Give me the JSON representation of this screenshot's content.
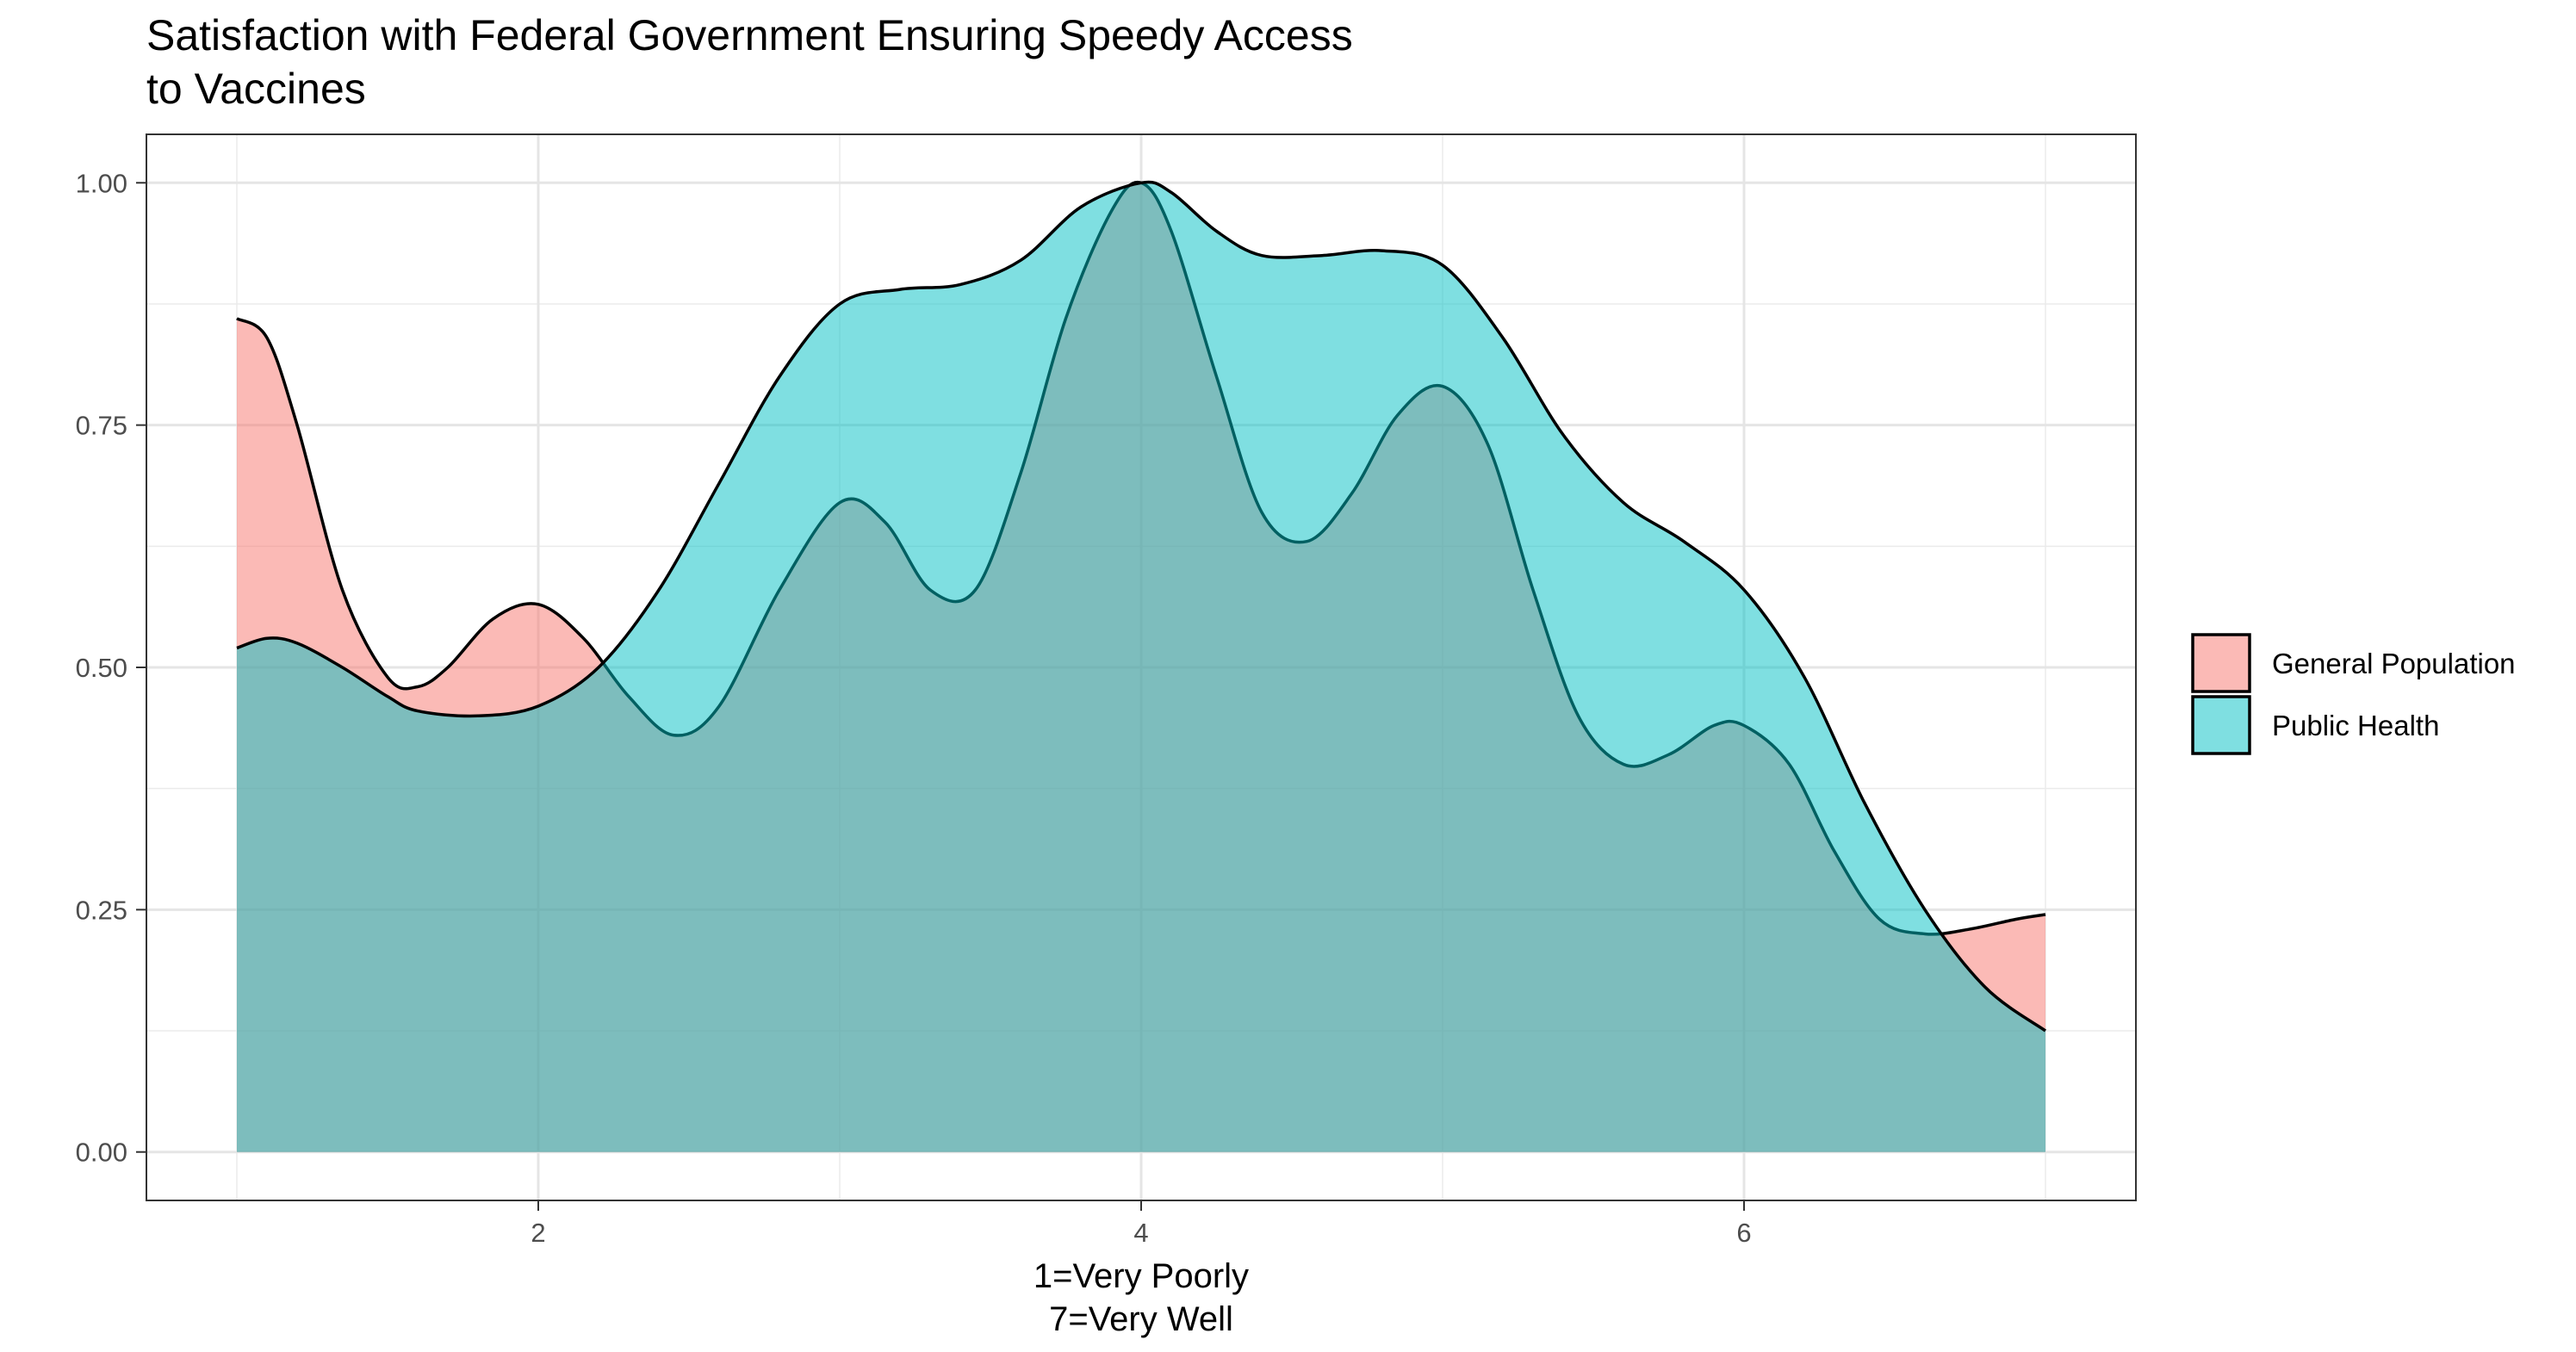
{
  "chart_data": {
    "type": "area",
    "title": [
      "Satisfaction with Federal Government Ensuring Speedy Access",
      "to Vaccines"
    ],
    "xlabel": [
      "1=Very Poorly",
      "7=Very Well"
    ],
    "ylabel": "",
    "xlim": [
      0.7,
      7.3
    ],
    "ylim": [
      -0.05,
      1.05
    ],
    "x_ticks": [
      2,
      4,
      6
    ],
    "x_tick_labels": [
      "2",
      "4",
      "6"
    ],
    "y_ticks": [
      0,
      0.25,
      0.5,
      0.75,
      1.0
    ],
    "y_tick_labels": [
      "0.00",
      "0.25",
      "0.50",
      "0.75",
      "1.00"
    ],
    "grid": true,
    "legend_position": "right",
    "series": [
      {
        "name": "General Population",
        "color": "#F8766D",
        "x": [
          1.0,
          1.1,
          1.2,
          1.35,
          1.5,
          1.6,
          1.7,
          1.85,
          2.0,
          2.15,
          2.3,
          2.45,
          2.6,
          2.8,
          3.0,
          3.15,
          3.3,
          3.45,
          3.6,
          3.75,
          3.9,
          4.0,
          4.1,
          4.25,
          4.4,
          4.55,
          4.7,
          4.85,
          5.0,
          5.15,
          5.3,
          5.45,
          5.6,
          5.75,
          5.9,
          6.0,
          6.15,
          6.3,
          6.45,
          6.6,
          6.75,
          6.9,
          7.0
        ],
        "values": [
          0.86,
          0.84,
          0.75,
          0.58,
          0.49,
          0.48,
          0.5,
          0.55,
          0.565,
          0.53,
          0.47,
          0.43,
          0.46,
          0.58,
          0.67,
          0.65,
          0.58,
          0.58,
          0.7,
          0.86,
          0.97,
          1.0,
          0.95,
          0.8,
          0.66,
          0.63,
          0.68,
          0.76,
          0.79,
          0.73,
          0.58,
          0.45,
          0.4,
          0.41,
          0.44,
          0.44,
          0.4,
          0.31,
          0.24,
          0.225,
          0.23,
          0.24,
          0.245
        ]
      },
      {
        "name": "Public Health",
        "color": "#00BFC4",
        "x": [
          1.0,
          1.1,
          1.2,
          1.35,
          1.5,
          1.6,
          1.8,
          2.0,
          2.2,
          2.4,
          2.6,
          2.8,
          3.0,
          3.2,
          3.4,
          3.6,
          3.8,
          4.0,
          4.1,
          4.25,
          4.4,
          4.6,
          4.8,
          5.0,
          5.2,
          5.4,
          5.6,
          5.8,
          6.0,
          6.2,
          6.4,
          6.6,
          6.8,
          7.0
        ],
        "values": [
          0.52,
          0.53,
          0.525,
          0.5,
          0.47,
          0.455,
          0.45,
          0.46,
          0.5,
          0.58,
          0.69,
          0.8,
          0.875,
          0.89,
          0.895,
          0.92,
          0.975,
          1.0,
          0.99,
          0.95,
          0.925,
          0.925,
          0.93,
          0.915,
          0.84,
          0.74,
          0.67,
          0.63,
          0.58,
          0.49,
          0.36,
          0.25,
          0.17,
          0.125
        ]
      }
    ]
  }
}
